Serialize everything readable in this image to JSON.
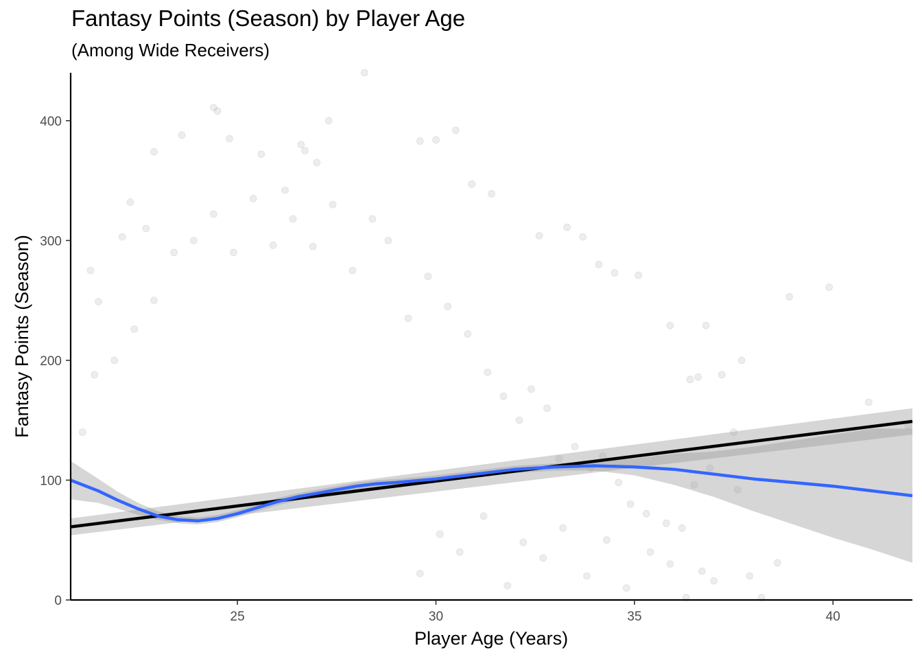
{
  "chart_data": {
    "type": "scatter",
    "title": "Fantasy Points (Season) by Player Age",
    "subtitle": "(Among Wide Receivers)",
    "xlabel": "Player Age (Years)",
    "ylabel": "Fantasy Points (Season)",
    "xlim": [
      20.8,
      42.0
    ],
    "ylim": [
      0,
      440
    ],
    "x_ticks": [
      25,
      30,
      35,
      40
    ],
    "y_ticks": [
      0,
      100,
      200,
      300,
      400
    ],
    "grid": false,
    "legend": "none",
    "point_color": "#000000",
    "point_alpha": 0.07,
    "scatter_points": [
      [
        21.3,
        275
      ],
      [
        21.5,
        249
      ],
      [
        22.1,
        303
      ],
      [
        22.3,
        332
      ],
      [
        22.7,
        310
      ],
      [
        22.9,
        374
      ],
      [
        23.6,
        388
      ],
      [
        24.4,
        411
      ],
      [
        24.5,
        408
      ],
      [
        24.8,
        385
      ],
      [
        25.6,
        372
      ],
      [
        26.2,
        342
      ],
      [
        26.6,
        380
      ],
      [
        26.7,
        375
      ],
      [
        27.0,
        365
      ],
      [
        27.3,
        400
      ],
      [
        28.2,
        440
      ],
      [
        29.6,
        383
      ],
      [
        30.0,
        384
      ],
      [
        30.5,
        392
      ],
      [
        30.9,
        347
      ],
      [
        31.4,
        339
      ],
      [
        32.6,
        304
      ],
      [
        33.3,
        311
      ],
      [
        33.7,
        303
      ],
      [
        34.1,
        280
      ],
      [
        34.5,
        273
      ],
      [
        35.1,
        271
      ],
      [
        35.9,
        229
      ],
      [
        36.4,
        184
      ],
      [
        36.6,
        186
      ],
      [
        36.8,
        229
      ],
      [
        37.2,
        188
      ],
      [
        37.7,
        200
      ],
      [
        38.9,
        253
      ],
      [
        39.9,
        261
      ],
      [
        40.9,
        165
      ],
      [
        41.9,
        145
      ],
      [
        37.5,
        140
      ],
      [
        38.6,
        31
      ],
      [
        38.2,
        2
      ],
      [
        37.9,
        20
      ],
      [
        37.6,
        92
      ],
      [
        36.9,
        110
      ],
      [
        36.5,
        96
      ],
      [
        36.2,
        60
      ],
      [
        35.8,
        64
      ],
      [
        35.3,
        72
      ],
      [
        34.9,
        80
      ],
      [
        34.6,
        98
      ],
      [
        34.2,
        120
      ],
      [
        33.9,
        110
      ],
      [
        33.5,
        128
      ],
      [
        33.1,
        118
      ],
      [
        32.8,
        160
      ],
      [
        32.4,
        176
      ],
      [
        32.1,
        150
      ],
      [
        31.7,
        170
      ],
      [
        31.3,
        190
      ],
      [
        30.8,
        222
      ],
      [
        30.3,
        245
      ],
      [
        29.8,
        270
      ],
      [
        29.3,
        235
      ],
      [
        28.8,
        300
      ],
      [
        28.4,
        318
      ],
      [
        27.9,
        275
      ],
      [
        27.4,
        330
      ],
      [
        26.9,
        295
      ],
      [
        26.4,
        318
      ],
      [
        25.9,
        296
      ],
      [
        25.4,
        335
      ],
      [
        24.9,
        290
      ],
      [
        24.4,
        322
      ],
      [
        23.9,
        300
      ],
      [
        23.4,
        290
      ],
      [
        22.9,
        250
      ],
      [
        22.4,
        226
      ],
      [
        21.9,
        200
      ],
      [
        21.4,
        188
      ],
      [
        21.1,
        140
      ],
      [
        37.0,
        16
      ],
      [
        36.7,
        24
      ],
      [
        36.3,
        2
      ],
      [
        35.9,
        30
      ],
      [
        35.4,
        40
      ],
      [
        34.8,
        10
      ],
      [
        34.3,
        50
      ],
      [
        33.8,
        20
      ],
      [
        33.2,
        60
      ],
      [
        32.7,
        35
      ],
      [
        32.2,
        48
      ],
      [
        31.8,
        12
      ],
      [
        31.2,
        70
      ],
      [
        30.6,
        40
      ],
      [
        30.1,
        55
      ],
      [
        29.6,
        22
      ]
    ],
    "series": [
      {
        "type": "linear_fit",
        "color": "#000000",
        "x": [
          20.8,
          42.0
        ],
        "y": [
          61,
          149
        ],
        "ci_lower": [
          54,
          138
        ],
        "ci_upper": [
          68,
          160
        ]
      },
      {
        "type": "loess_fit",
        "color": "#3366FF",
        "x": [
          20.8,
          21.5,
          22.0,
          22.5,
          23.0,
          23.5,
          24.0,
          24.5,
          25.0,
          25.5,
          26.0,
          26.5,
          27.0,
          27.5,
          28.0,
          28.5,
          29.0,
          30.0,
          31.0,
          32.0,
          33.0,
          34.0,
          35.0,
          36.0,
          37.0,
          38.0,
          39.0,
          40.0,
          41.0,
          42.0
        ],
        "y": [
          100,
          91,
          83,
          76,
          70,
          67,
          66,
          68,
          72,
          77,
          82,
          86,
          89,
          92,
          95,
          97,
          98,
          101,
          105,
          109,
          111,
          112,
          111,
          109,
          105,
          101,
          98,
          95,
          91,
          87
        ],
        "ci_lower": [
          84,
          81,
          76,
          71,
          67,
          64,
          63,
          65,
          69,
          74,
          79,
          83,
          86,
          89,
          92,
          94,
          96,
          99,
          102,
          106,
          108,
          108,
          104,
          96,
          86,
          74,
          63,
          52,
          42,
          31
        ],
        "ci_upper": [
          116,
          101,
          90,
          81,
          74,
          70,
          69,
          71,
          75,
          80,
          85,
          89,
          92,
          95,
          98,
          100,
          101,
          104,
          108,
          112,
          114,
          116,
          118,
          122,
          124,
          128,
          133,
          138,
          143,
          143
        ]
      }
    ]
  }
}
